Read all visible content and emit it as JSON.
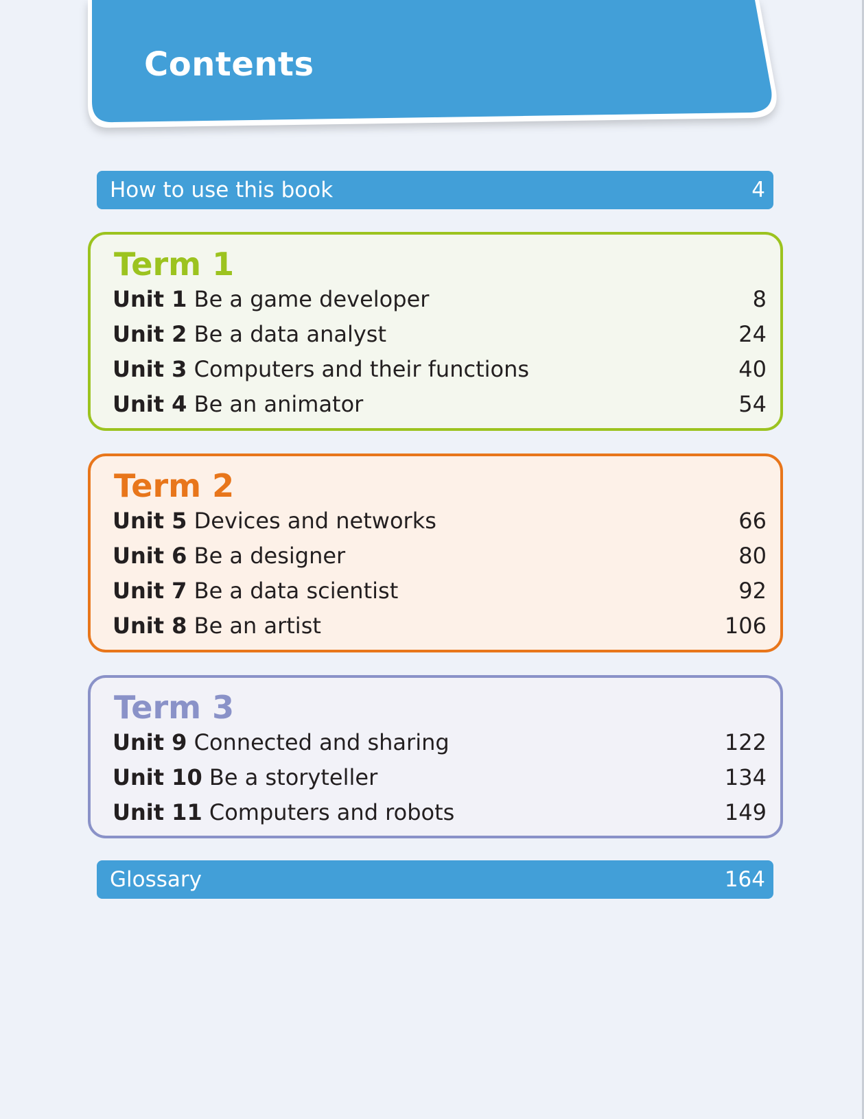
{
  "header": {
    "title": "Contents",
    "color": "#429fd8"
  },
  "how_to_use": {
    "label": "How to use this book",
    "page": "4"
  },
  "terms": [
    {
      "title": "Term 1",
      "color": "#9cc31f",
      "units": [
        {
          "num": "Unit 1",
          "title": "Be a game developer",
          "page": "8"
        },
        {
          "num": "Unit 2",
          "title": "Be a data analyst",
          "page": "24"
        },
        {
          "num": "Unit 3",
          "title": "Computers and their functions",
          "page": "40"
        },
        {
          "num": "Unit 4",
          "title": "Be an animator",
          "page": "54"
        }
      ]
    },
    {
      "title": "Term 2",
      "color": "#e8761b",
      "units": [
        {
          "num": "Unit 5",
          "title": "Devices and networks",
          "page": "66"
        },
        {
          "num": "Unit 6",
          "title": "Be a designer",
          "page": "80"
        },
        {
          "num": "Unit 7",
          "title": "Be a data scientist",
          "page": "92"
        },
        {
          "num": "Unit 8",
          "title": "Be an artist",
          "page": "106"
        }
      ]
    },
    {
      "title": "Term 3",
      "color": "#8a92c8",
      "units": [
        {
          "num": "Unit 9",
          "title": "Connected and sharing",
          "page": "122"
        },
        {
          "num": "Unit 10",
          "title": "Be a storyteller",
          "page": "134"
        },
        {
          "num": "Unit 11",
          "title": "Computers and robots",
          "page": "149"
        }
      ]
    }
  ],
  "glossary": {
    "label": "Glossary",
    "page": "164"
  }
}
